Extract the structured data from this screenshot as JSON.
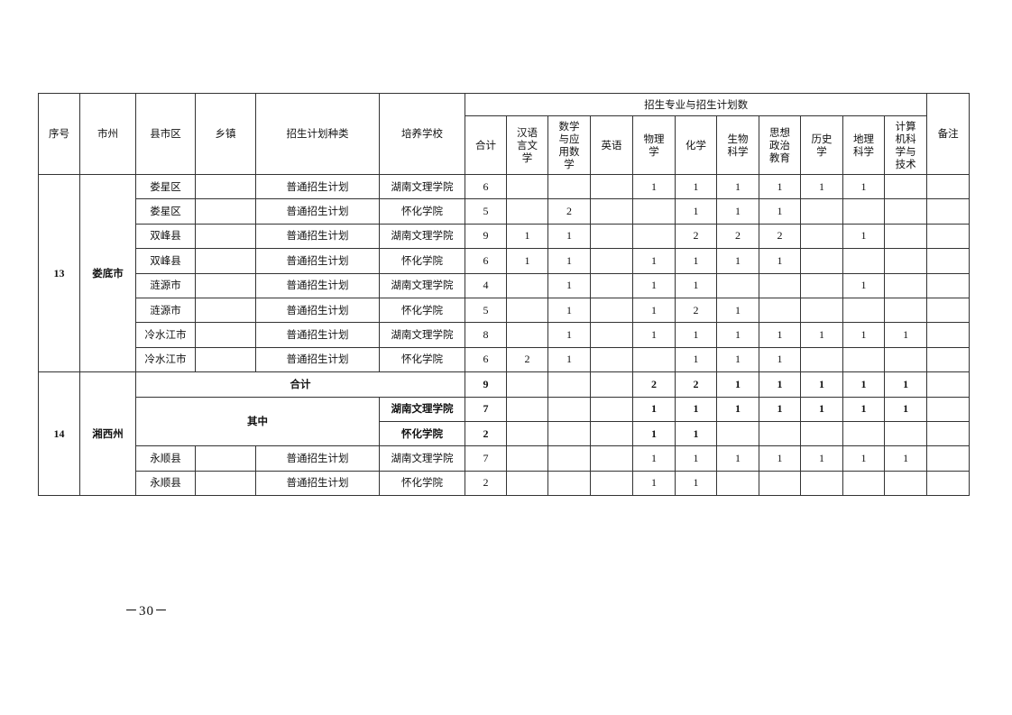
{
  "header": {
    "seq": "序号",
    "city": "市州",
    "county": "县市区",
    "town": "乡镇",
    "plan_type": "招生计划种类",
    "school": "培养学校",
    "majors_group": "招生专业与招生计划数",
    "majors": [
      "合计",
      "汉语\n言文\n学",
      "数学\n与应\n用数\n学",
      "英语",
      "物理\n学",
      "化学",
      "生物\n科学",
      "思想\n政治\n教育",
      "历史\n学",
      "地理\n科学",
      "计算\n机科\n学与\n技术"
    ],
    "remarks": "备注"
  },
  "groups": [
    {
      "seq": "13",
      "city": "娄底市",
      "rows": [
        {
          "county": "娄星区",
          "town": "",
          "plan_type": "普通招生计划",
          "school": "湖南文理学院",
          "values": [
            "6",
            "",
            "",
            "",
            "1",
            "1",
            "1",
            "1",
            "1",
            "1",
            ""
          ]
        },
        {
          "county": "娄星区",
          "town": "",
          "plan_type": "普通招生计划",
          "school": "怀化学院",
          "values": [
            "5",
            "",
            "2",
            "",
            "",
            "1",
            "1",
            "1",
            "",
            "",
            ""
          ]
        },
        {
          "county": "双峰县",
          "town": "",
          "plan_type": "普通招生计划",
          "school": "湖南文理学院",
          "values": [
            "9",
            "1",
            "1",
            "",
            "",
            "2",
            "2",
            "2",
            "",
            "1",
            ""
          ]
        },
        {
          "county": "双峰县",
          "town": "",
          "plan_type": "普通招生计划",
          "school": "怀化学院",
          "values": [
            "6",
            "1",
            "1",
            "",
            "1",
            "1",
            "1",
            "1",
            "",
            "",
            ""
          ]
        },
        {
          "county": "涟源市",
          "town": "",
          "plan_type": "普通招生计划",
          "school": "湖南文理学院",
          "values": [
            "4",
            "",
            "1",
            "",
            "1",
            "1",
            "",
            "",
            "",
            "1",
            ""
          ]
        },
        {
          "county": "涟源市",
          "town": "",
          "plan_type": "普通招生计划",
          "school": "怀化学院",
          "values": [
            "5",
            "",
            "1",
            "",
            "1",
            "2",
            "1",
            "",
            "",
            "",
            ""
          ]
        },
        {
          "county": "冷水江市",
          "town": "",
          "plan_type": "普通招生计划",
          "school": "湖南文理学院",
          "values": [
            "8",
            "",
            "1",
            "",
            "1",
            "1",
            "1",
            "1",
            "1",
            "1",
            "1"
          ]
        },
        {
          "county": "冷水江市",
          "town": "",
          "plan_type": "普通招生计划",
          "school": "怀化学院",
          "values": [
            "6",
            "2",
            "1",
            "",
            "",
            "1",
            "1",
            "1",
            "",
            "",
            ""
          ]
        }
      ]
    },
    {
      "seq": "14",
      "city": "湘西州",
      "total": {
        "label": "合计",
        "values": [
          "9",
          "",
          "",
          "",
          "2",
          "2",
          "1",
          "1",
          "1",
          "1",
          "1"
        ]
      },
      "of_which": {
        "label": "其中",
        "rows": [
          {
            "school": "湖南文理学院",
            "values": [
              "7",
              "",
              "",
              "",
              "1",
              "1",
              "1",
              "1",
              "1",
              "1",
              "1"
            ]
          },
          {
            "school": "怀化学院",
            "values": [
              "2",
              "",
              "",
              "",
              "1",
              "1",
              "",
              "",
              "",
              "",
              ""
            ]
          }
        ]
      },
      "rows": [
        {
          "county": "永顺县",
          "town": "",
          "plan_type": "普通招生计划",
          "school": "湖南文理学院",
          "values": [
            "7",
            "",
            "",
            "",
            "1",
            "1",
            "1",
            "1",
            "1",
            "1",
            "1"
          ]
        },
        {
          "county": "永顺县",
          "town": "",
          "plan_type": "普通招生计划",
          "school": "怀化学院",
          "values": [
            "2",
            "",
            "",
            "",
            "1",
            "1",
            "",
            "",
            "",
            "",
            ""
          ]
        }
      ]
    }
  ],
  "page_number": "－30－"
}
